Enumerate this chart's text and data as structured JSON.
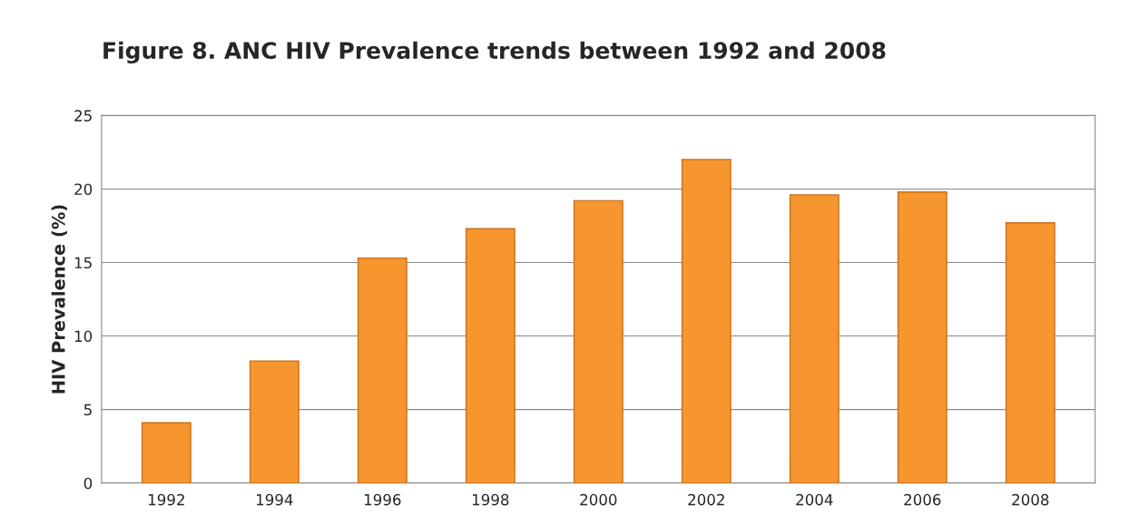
{
  "chart_data": {
    "type": "bar",
    "title": "Figure 8. ANC HIV Prevalence trends between 1992 and 2008",
    "ylabel": "HIV Prevalence (%)",
    "categories": [
      "1992",
      "1994",
      "1996",
      "1998",
      "2000",
      "2002",
      "2004",
      "2006",
      "2008"
    ],
    "values": [
      4.1,
      8.3,
      15.3,
      17.3,
      19.2,
      22.0,
      19.6,
      19.8,
      17.7
    ],
    "color": "#f7962f",
    "ylim": [
      0,
      25
    ],
    "yticks": [
      0,
      5,
      10,
      15,
      20,
      25
    ],
    "grid": "y"
  }
}
